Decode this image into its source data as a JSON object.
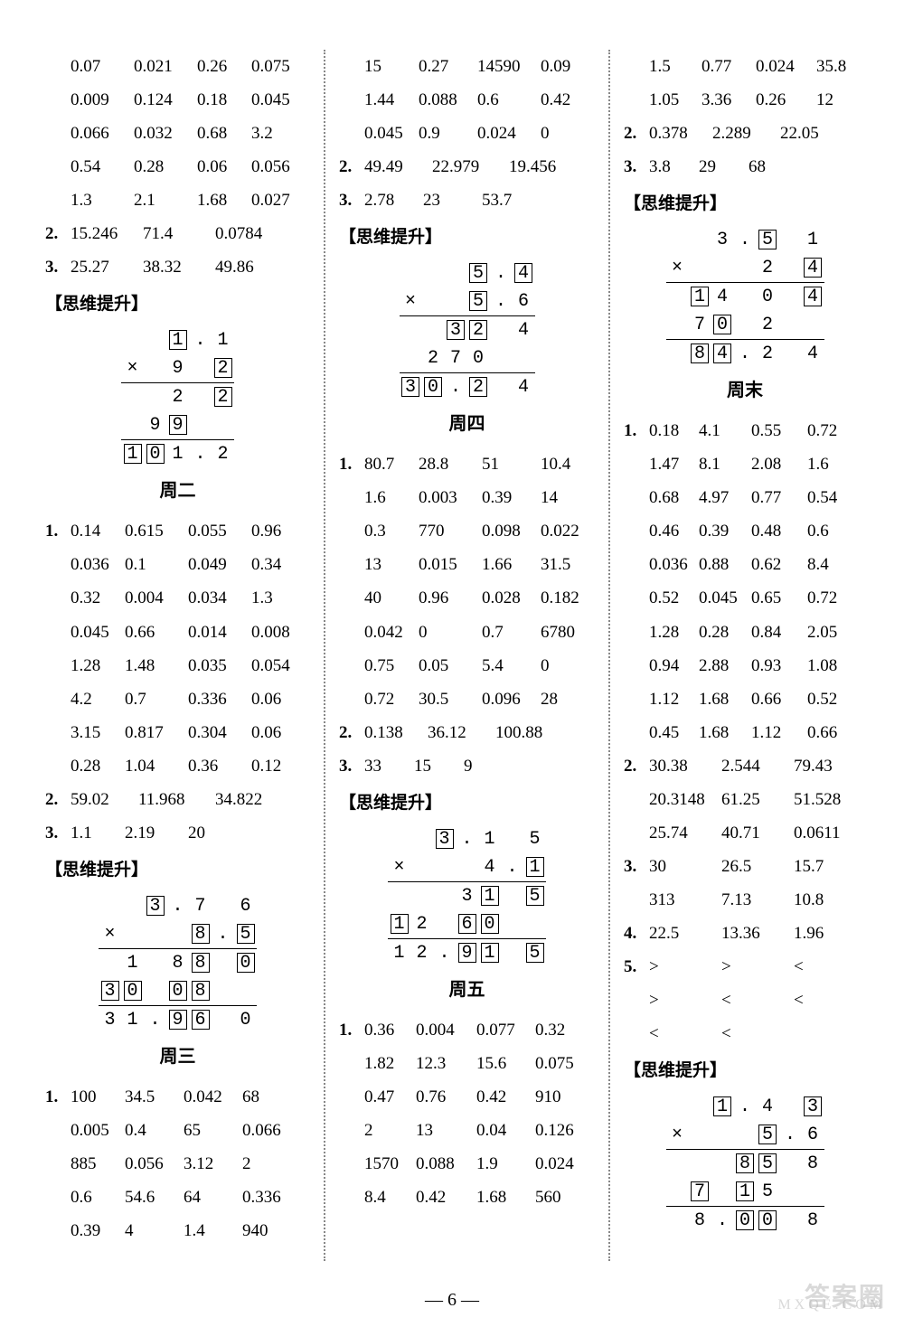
{
  "page_number": "6",
  "section_header": "【思维提升】",
  "days": {
    "d2": "周二",
    "d3": "周三",
    "d4": "周四",
    "d5": "周五",
    "dw": "周末"
  },
  "col1": {
    "block1_rows": [
      [
        "0.07",
        "0.021",
        "0.26",
        "0.075"
      ],
      [
        "0.009",
        "0.124",
        "0.18",
        "0.045"
      ],
      [
        "0.066",
        "0.032",
        "0.68",
        "3.2"
      ],
      [
        "0.54",
        "0.28",
        "0.06",
        "0.056"
      ],
      [
        "1.3",
        "2.1",
        "1.68",
        "0.027"
      ]
    ],
    "n2": [
      "15.246",
      "71.4",
      "0.0784"
    ],
    "n3": [
      "25.27",
      "38.32",
      "49.86"
    ],
    "mult1": {
      "r1": [
        "",
        "",
        "1",
        ".",
        "1"
      ],
      "r2": [
        "×",
        "",
        "9",
        "",
        "2"
      ],
      "r3": [
        "",
        "",
        "2",
        "",
        "2"
      ],
      "r4": [
        "",
        "9",
        "9",
        "",
        ""
      ],
      "r5": [
        "1",
        "0",
        "1",
        ".",
        "2"
      ]
    },
    "d2_block1": [
      [
        "0.14",
        "0.615",
        "0.055",
        "0.96"
      ],
      [
        "0.036",
        "0.1",
        "0.049",
        "0.34"
      ],
      [
        "0.32",
        "0.004",
        "0.034",
        "1.3"
      ],
      [
        "0.045",
        "0.66",
        "0.014",
        "0.008"
      ],
      [
        "1.28",
        "1.48",
        "0.035",
        "0.054"
      ],
      [
        "4.2",
        "0.7",
        "0.336",
        "0.06"
      ],
      [
        "3.15",
        "0.817",
        "0.304",
        "0.06"
      ],
      [
        "0.28",
        "1.04",
        "0.36",
        "0.12"
      ]
    ],
    "d2_n2": [
      "59.02",
      "11.968",
      "34.822"
    ],
    "d2_n3": [
      "1.1",
      "2.19",
      "20"
    ],
    "mult2": {
      "r1": [
        "",
        "",
        "3",
        ".",
        "7",
        "",
        "6"
      ],
      "r2": [
        "×",
        "",
        "",
        "",
        "8",
        ".",
        "5"
      ],
      "r3": [
        "",
        "1",
        "",
        "8",
        "8",
        "",
        "0"
      ],
      "r4": [
        "3",
        "0",
        "",
        "0",
        "8",
        "",
        ""
      ],
      "r5": [
        "3",
        "1",
        ".",
        "9",
        "6",
        "",
        "0"
      ]
    },
    "d3_block1": [
      [
        "100",
        "34.5",
        "0.042",
        "68"
      ],
      [
        "0.005",
        "0.4",
        "65",
        "0.066"
      ],
      [
        "885",
        "0.056",
        "3.12",
        "2"
      ],
      [
        "0.6",
        "54.6",
        "64",
        "0.336"
      ],
      [
        "0.39",
        "4",
        "1.4",
        "940"
      ]
    ]
  },
  "col2": {
    "top_rows": [
      [
        "15",
        "0.27",
        "14590",
        "0.09"
      ],
      [
        "1.44",
        "0.088",
        "0.6",
        "0.42"
      ],
      [
        "0.045",
        "0.9",
        "0.024",
        "0"
      ]
    ],
    "n2": [
      "49.49",
      "22.979",
      "19.456"
    ],
    "n3": [
      "2.78",
      "23",
      "53.7"
    ],
    "mult1": {
      "r1": [
        "",
        "",
        "",
        "5",
        ".",
        "4"
      ],
      "r2": [
        "×",
        "",
        "",
        "5",
        ".",
        "6"
      ],
      "r3": [
        "",
        "",
        "3",
        "2",
        "",
        "4"
      ],
      "r4": [
        "",
        "2",
        "7",
        "0",
        "",
        ""
      ],
      "r5": [
        "3",
        "0",
        ".",
        "2",
        "",
        "4"
      ]
    },
    "d4_block1": [
      [
        "80.7",
        "28.8",
        "51",
        "10.4"
      ],
      [
        "1.6",
        "0.003",
        "0.39",
        "14"
      ],
      [
        "0.3",
        "770",
        "0.098",
        "0.022"
      ],
      [
        "13",
        "0.015",
        "1.66",
        "31.5"
      ],
      [
        "40",
        "0.96",
        "0.028",
        "0.182"
      ],
      [
        "0.042",
        "0",
        "0.7",
        "6780"
      ],
      [
        "0.75",
        "0.05",
        "5.4",
        "0"
      ],
      [
        "0.72",
        "30.5",
        "0.096",
        "28"
      ]
    ],
    "d4_n2": [
      "0.138",
      "36.12",
      "100.88"
    ],
    "d4_n3": [
      "33",
      "15",
      "9"
    ],
    "mult2": {
      "r1": [
        "",
        "",
        "3",
        ".",
        "1",
        "",
        "5"
      ],
      "r2": [
        "×",
        "",
        "",
        "",
        "4",
        ".",
        "1"
      ],
      "r3": [
        "",
        "",
        "",
        "3",
        "1",
        "",
        "5"
      ],
      "r4": [
        "1",
        "2",
        "",
        "6",
        "0",
        "",
        ""
      ],
      "r5": [
        "1",
        "2",
        ".",
        "9",
        "1",
        "",
        "5"
      ]
    },
    "d5_block1": [
      [
        "0.36",
        "0.004",
        "0.077",
        "0.32"
      ],
      [
        "1.82",
        "12.3",
        "15.6",
        "0.075"
      ],
      [
        "0.47",
        "0.76",
        "0.42",
        "910"
      ],
      [
        "2",
        "13",
        "0.04",
        "0.126"
      ],
      [
        "1570",
        "0.088",
        "1.9",
        "0.024"
      ],
      [
        "8.4",
        "0.42",
        "1.68",
        "560"
      ]
    ]
  },
  "col3": {
    "top_rows": [
      [
        "1.5",
        "0.77",
        "0.024",
        "35.8"
      ],
      [
        "1.05",
        "3.36",
        "0.26",
        "12"
      ]
    ],
    "n2": [
      "0.378",
      "2.289",
      "22.05"
    ],
    "n3": [
      "3.8",
      "29",
      "68"
    ],
    "mult1": {
      "r1": [
        "",
        "",
        "3",
        ".",
        "5",
        "",
        "1"
      ],
      "r2": [
        "×",
        "",
        "",
        "",
        "2",
        "",
        "4"
      ],
      "r3": [
        "",
        "1",
        "4",
        "",
        "0",
        "",
        "4"
      ],
      "r4": [
        "",
        "7",
        "0",
        "",
        "2",
        "",
        ""
      ],
      "r5": [
        "",
        "8",
        "4",
        ".",
        "2",
        "",
        "4"
      ]
    },
    "dw_block1": [
      [
        "0.18",
        "4.1",
        "0.55",
        "0.72"
      ],
      [
        "1.47",
        "8.1",
        "2.08",
        "1.6"
      ],
      [
        "0.68",
        "4.97",
        "0.77",
        "0.54"
      ],
      [
        "0.46",
        "0.39",
        "0.48",
        "0.6"
      ],
      [
        "0.036",
        "0.88",
        "0.62",
        "8.4"
      ],
      [
        "0.52",
        "0.045",
        "0.65",
        "0.72"
      ],
      [
        "1.28",
        "0.28",
        "0.84",
        "2.05"
      ],
      [
        "0.94",
        "2.88",
        "0.93",
        "1.08"
      ],
      [
        "1.12",
        "1.68",
        "0.66",
        "0.52"
      ],
      [
        "0.45",
        "1.68",
        "1.12",
        "0.66"
      ]
    ],
    "dw_n2a": [
      "30.38",
      "2.544",
      "79.43"
    ],
    "dw_n2b": [
      "20.3148",
      "61.25",
      "51.528"
    ],
    "dw_n2c": [
      "25.74",
      "40.71",
      "0.0611"
    ],
    "dw_n3a": [
      "30",
      "26.5",
      "15.7"
    ],
    "dw_n3b": [
      "313",
      "7.13",
      "10.8"
    ],
    "dw_n4": [
      "22.5",
      "13.36",
      "1.96"
    ],
    "dw_n5a": [
      ">",
      ">",
      "<"
    ],
    "dw_n5b": [
      ">",
      "<",
      "<"
    ],
    "dw_n5c": [
      "<",
      "<",
      ""
    ],
    "mult2": {
      "r1": [
        "",
        "",
        "1",
        ".",
        "4",
        "",
        "3"
      ],
      "r2": [
        "×",
        "",
        "",
        "",
        "5",
        ".",
        "6"
      ],
      "r3": [
        "",
        "",
        "",
        "8",
        "5",
        "",
        "8"
      ],
      "r4": [
        "",
        "7",
        "",
        "1",
        "5",
        "",
        ""
      ],
      "r5": [
        "",
        "8",
        ".",
        "0",
        "0",
        "",
        "8"
      ]
    }
  }
}
